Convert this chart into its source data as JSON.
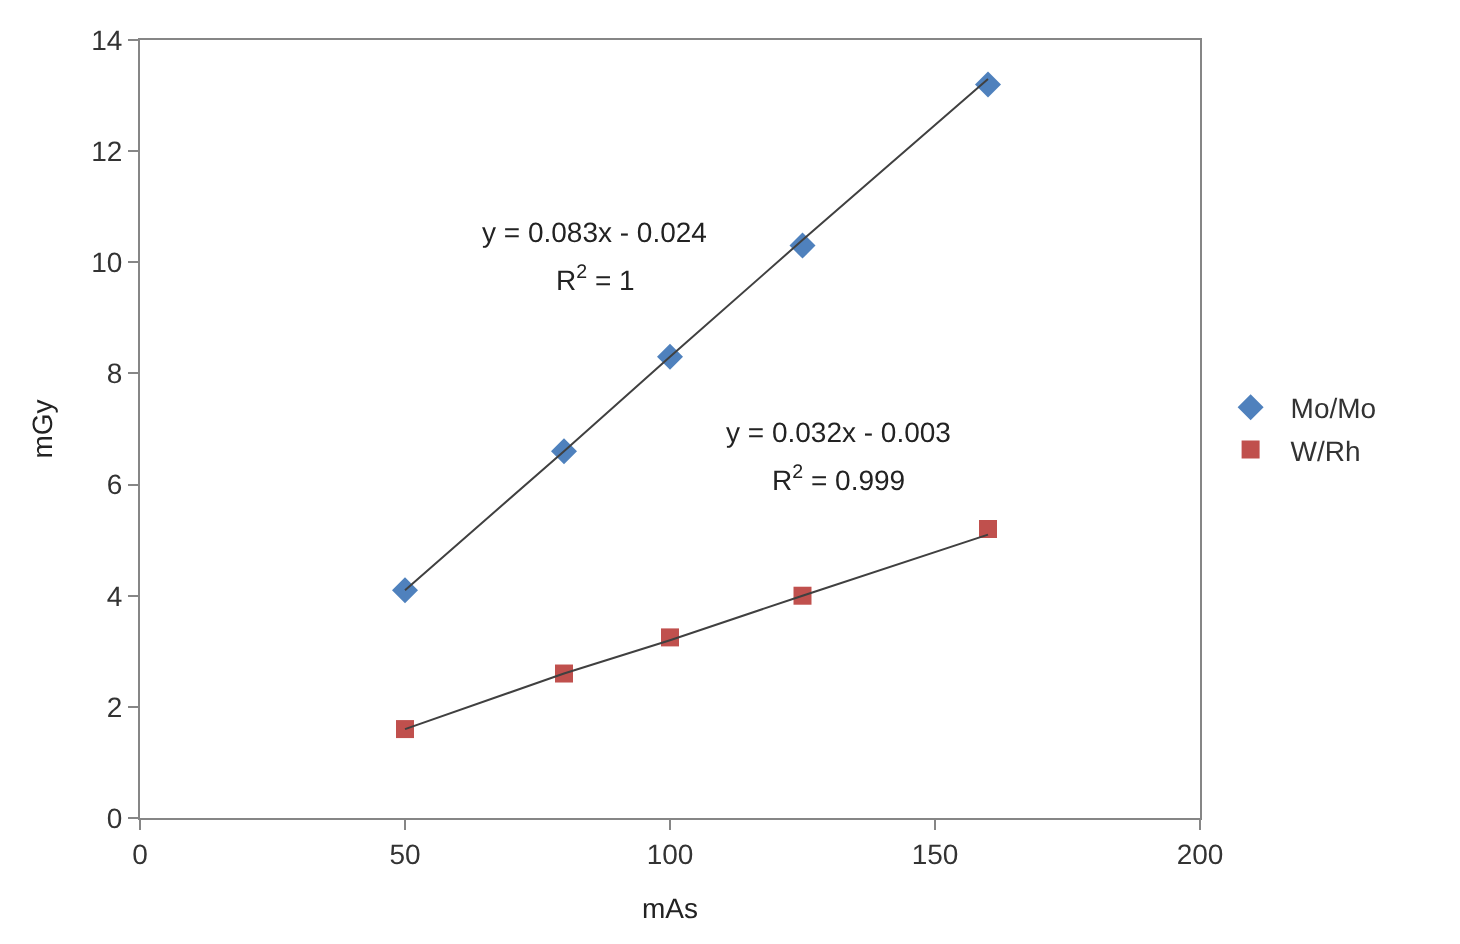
{
  "chart_data": {
    "type": "scatter",
    "xlabel": "mAs",
    "ylabel": "mGy",
    "x": [
      50,
      80,
      100,
      125,
      160
    ],
    "series": [
      {
        "name": "Mo/Mo",
        "color": "#4f81bd",
        "marker": "diamond",
        "values": [
          4.1,
          6.6,
          8.3,
          10.3,
          13.2
        ]
      },
      {
        "name": "W/Rh",
        "color": "#c0504d",
        "marker": "square",
        "values": [
          1.6,
          2.6,
          3.25,
          4.0,
          5.2
        ]
      },
      {
        "type": "line",
        "color": "#404040",
        "marker": "none",
        "values": [
          4.1,
          6.6,
          8.3,
          10.4,
          13.3
        ]
      },
      {
        "type": "line",
        "color": "#404040",
        "marker": "none",
        "values": [
          1.6,
          2.6,
          3.2,
          4.0,
          5.1
        ]
      }
    ],
    "annotations": [
      "y = 0.083x - 0.024",
      "R$^{2}$ = 1",
      "y = 0.032x - 0.003",
      "R$^{2}$ = 0.999"
    ],
    "xlim": [
      0,
      200
    ],
    "xticks": [
      0,
      50,
      100,
      150,
      200
    ],
    "ylim": [
      0,
      14
    ],
    "yticks": [
      0,
      2,
      4,
      6,
      8,
      10,
      12,
      14
    ],
    "legend": "right"
  }
}
